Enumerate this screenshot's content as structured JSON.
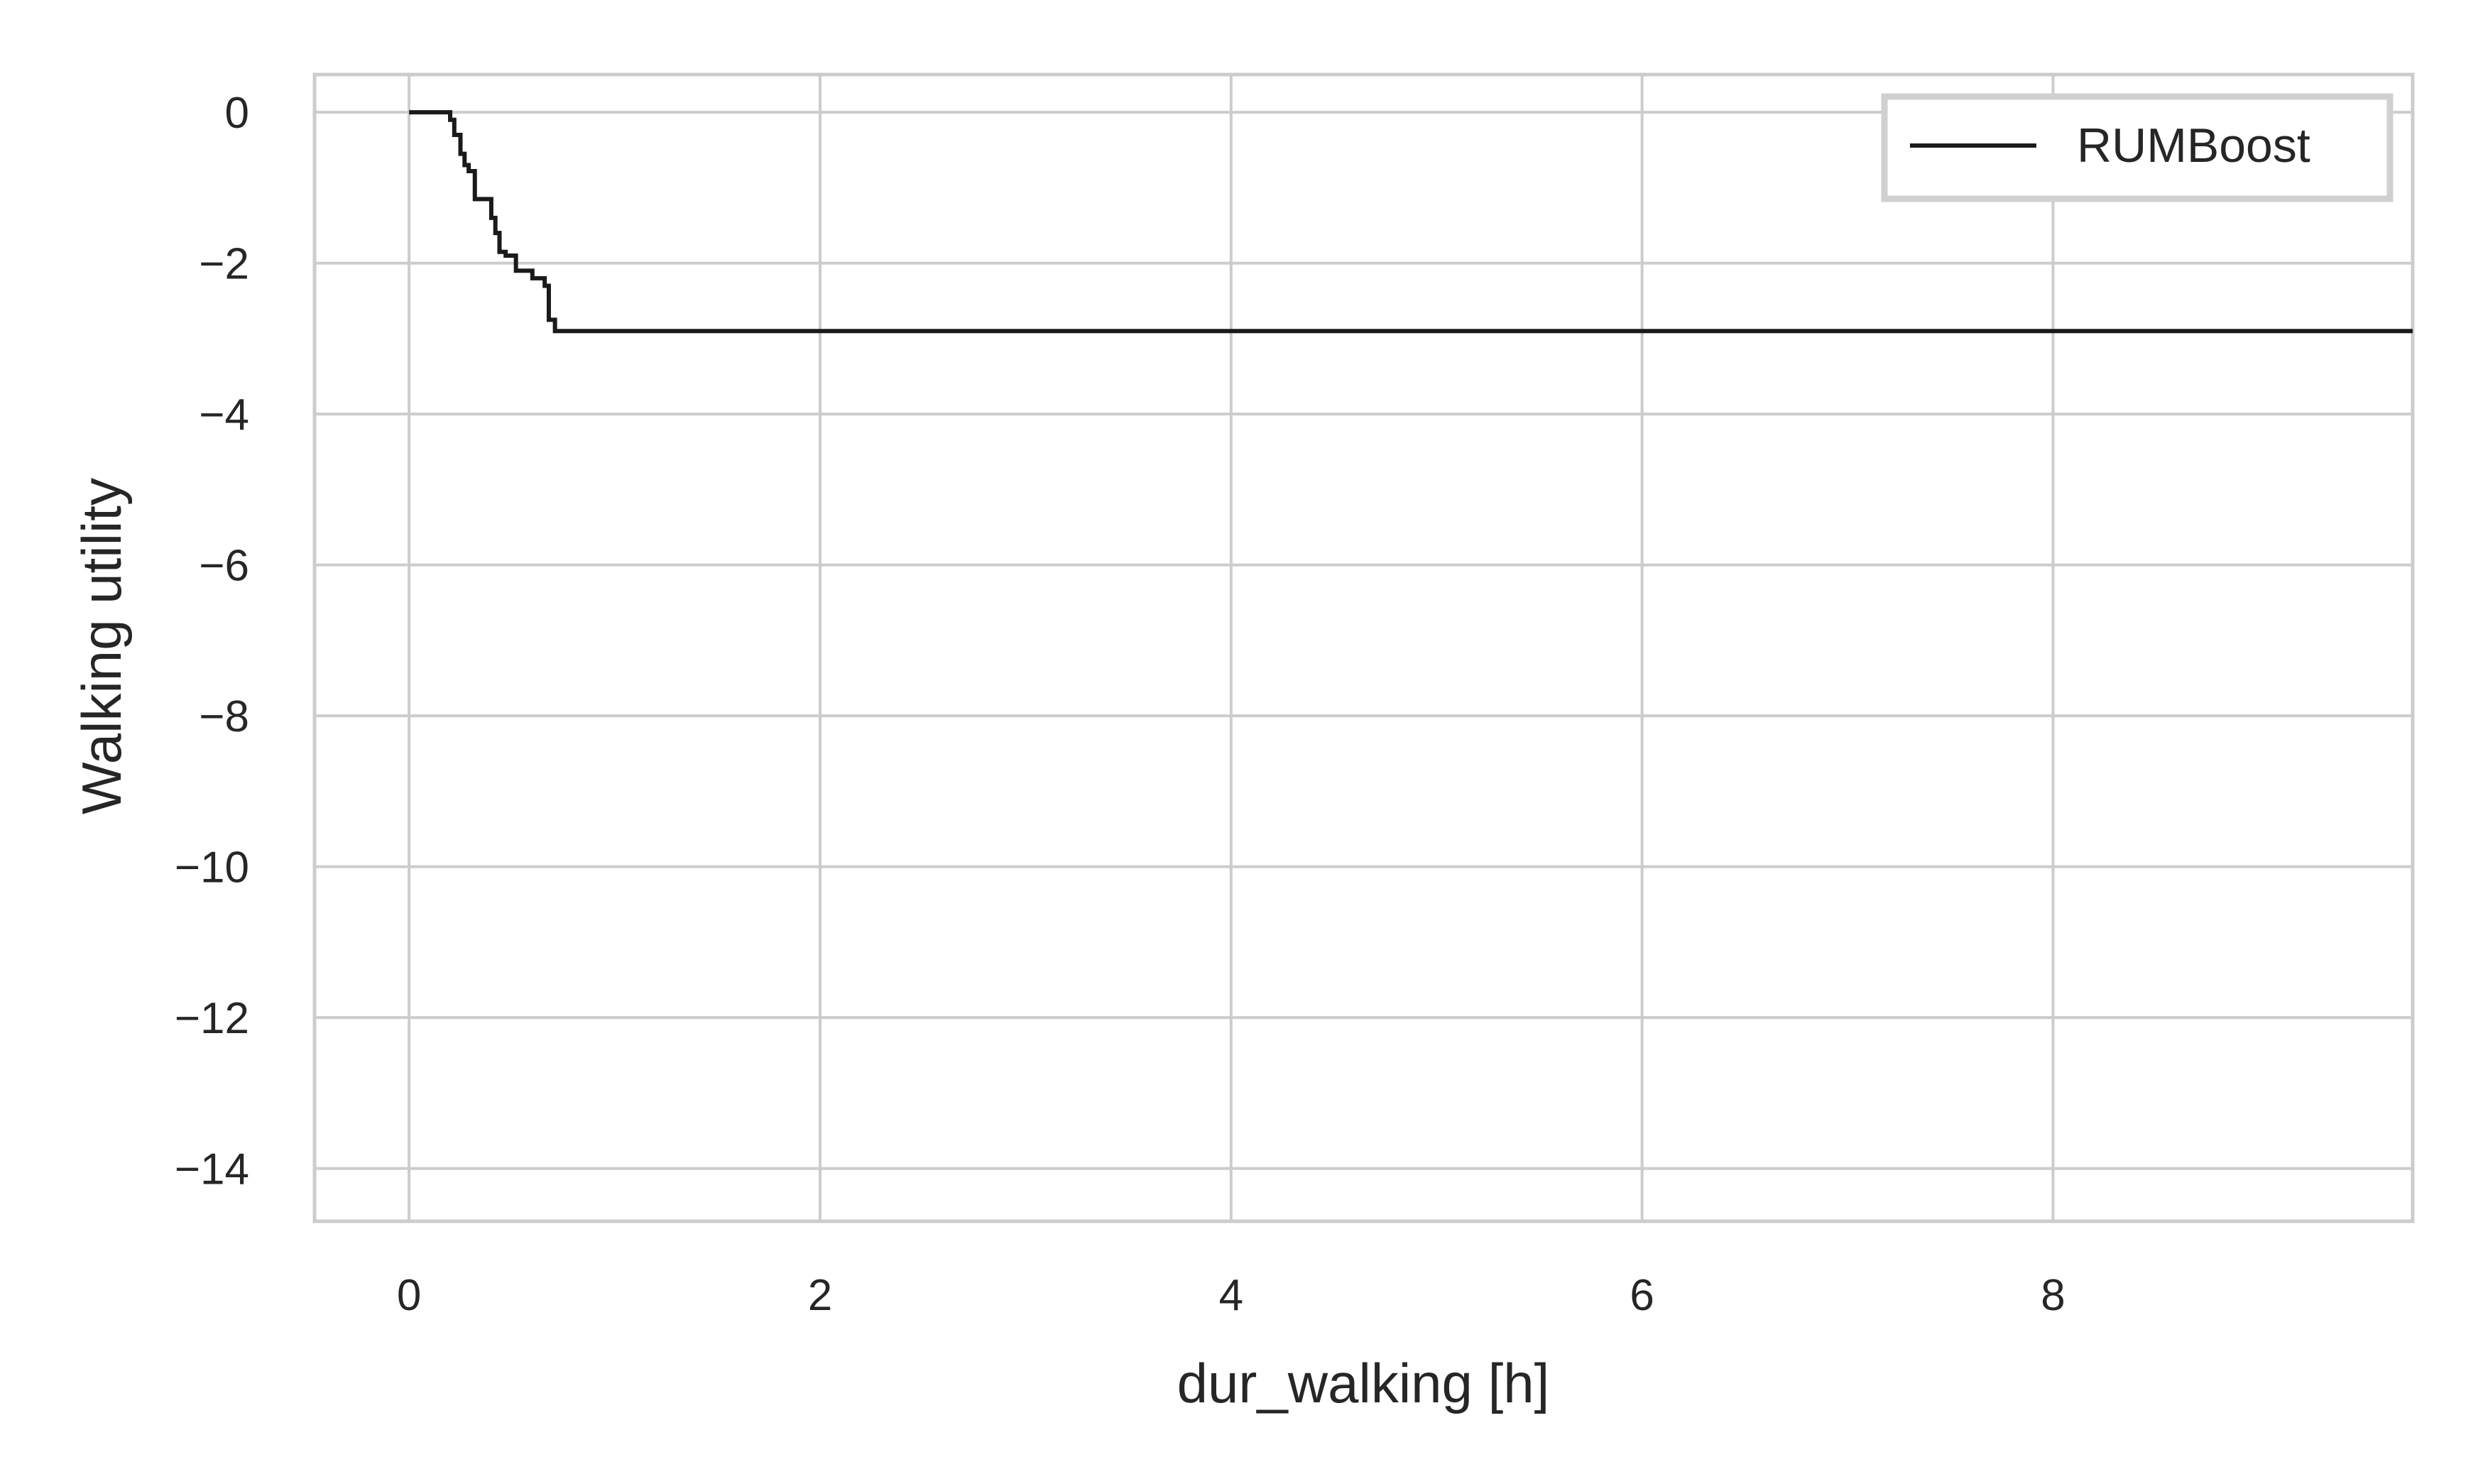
{
  "chart_data": {
    "type": "line",
    "title": "",
    "xlabel": "dur_walking [h]",
    "ylabel": "Walking utility",
    "xlim": [
      -0.46,
      9.75
    ],
    "ylim": [
      -14.7,
      0.5
    ],
    "grid": true,
    "legend_position": "top-right",
    "x_ticks": [
      0,
      2,
      4,
      6,
      8
    ],
    "x_tick_labels": [
      "0",
      "2",
      "4",
      "6",
      "8"
    ],
    "y_ticks": [
      0,
      -2,
      -4,
      -6,
      -8,
      -10,
      -12,
      -14
    ],
    "y_tick_labels": [
      "0",
      "−2",
      "−4",
      "−6",
      "−8",
      "−10",
      "−12",
      "−14"
    ],
    "series": [
      {
        "name": "RUMBoost",
        "color": "#1a1a1a",
        "step": true,
        "x": [
          0,
          0.2,
          0.22,
          0.25,
          0.27,
          0.29,
          0.32,
          0.37,
          0.4,
          0.42,
          0.44,
          0.47,
          0.52,
          0.56,
          0.6,
          0.66,
          0.68,
          0.71,
          9.75
        ],
        "y": [
          0,
          -0.1,
          -0.3,
          -0.55,
          -0.7,
          -0.78,
          -1.15,
          -1.15,
          -1.4,
          -1.6,
          -1.85,
          -1.9,
          -2.1,
          -2.1,
          -2.2,
          -2.3,
          -2.75,
          -2.9,
          -2.9
        ]
      }
    ]
  },
  "legend": {
    "entries": [
      {
        "label": "RUMBoost",
        "color": "#1a1a1a"
      }
    ]
  },
  "colors": {
    "grid": "#cccccc",
    "frame": "#cccccc",
    "text": "#262626",
    "background": "#ffffff"
  }
}
